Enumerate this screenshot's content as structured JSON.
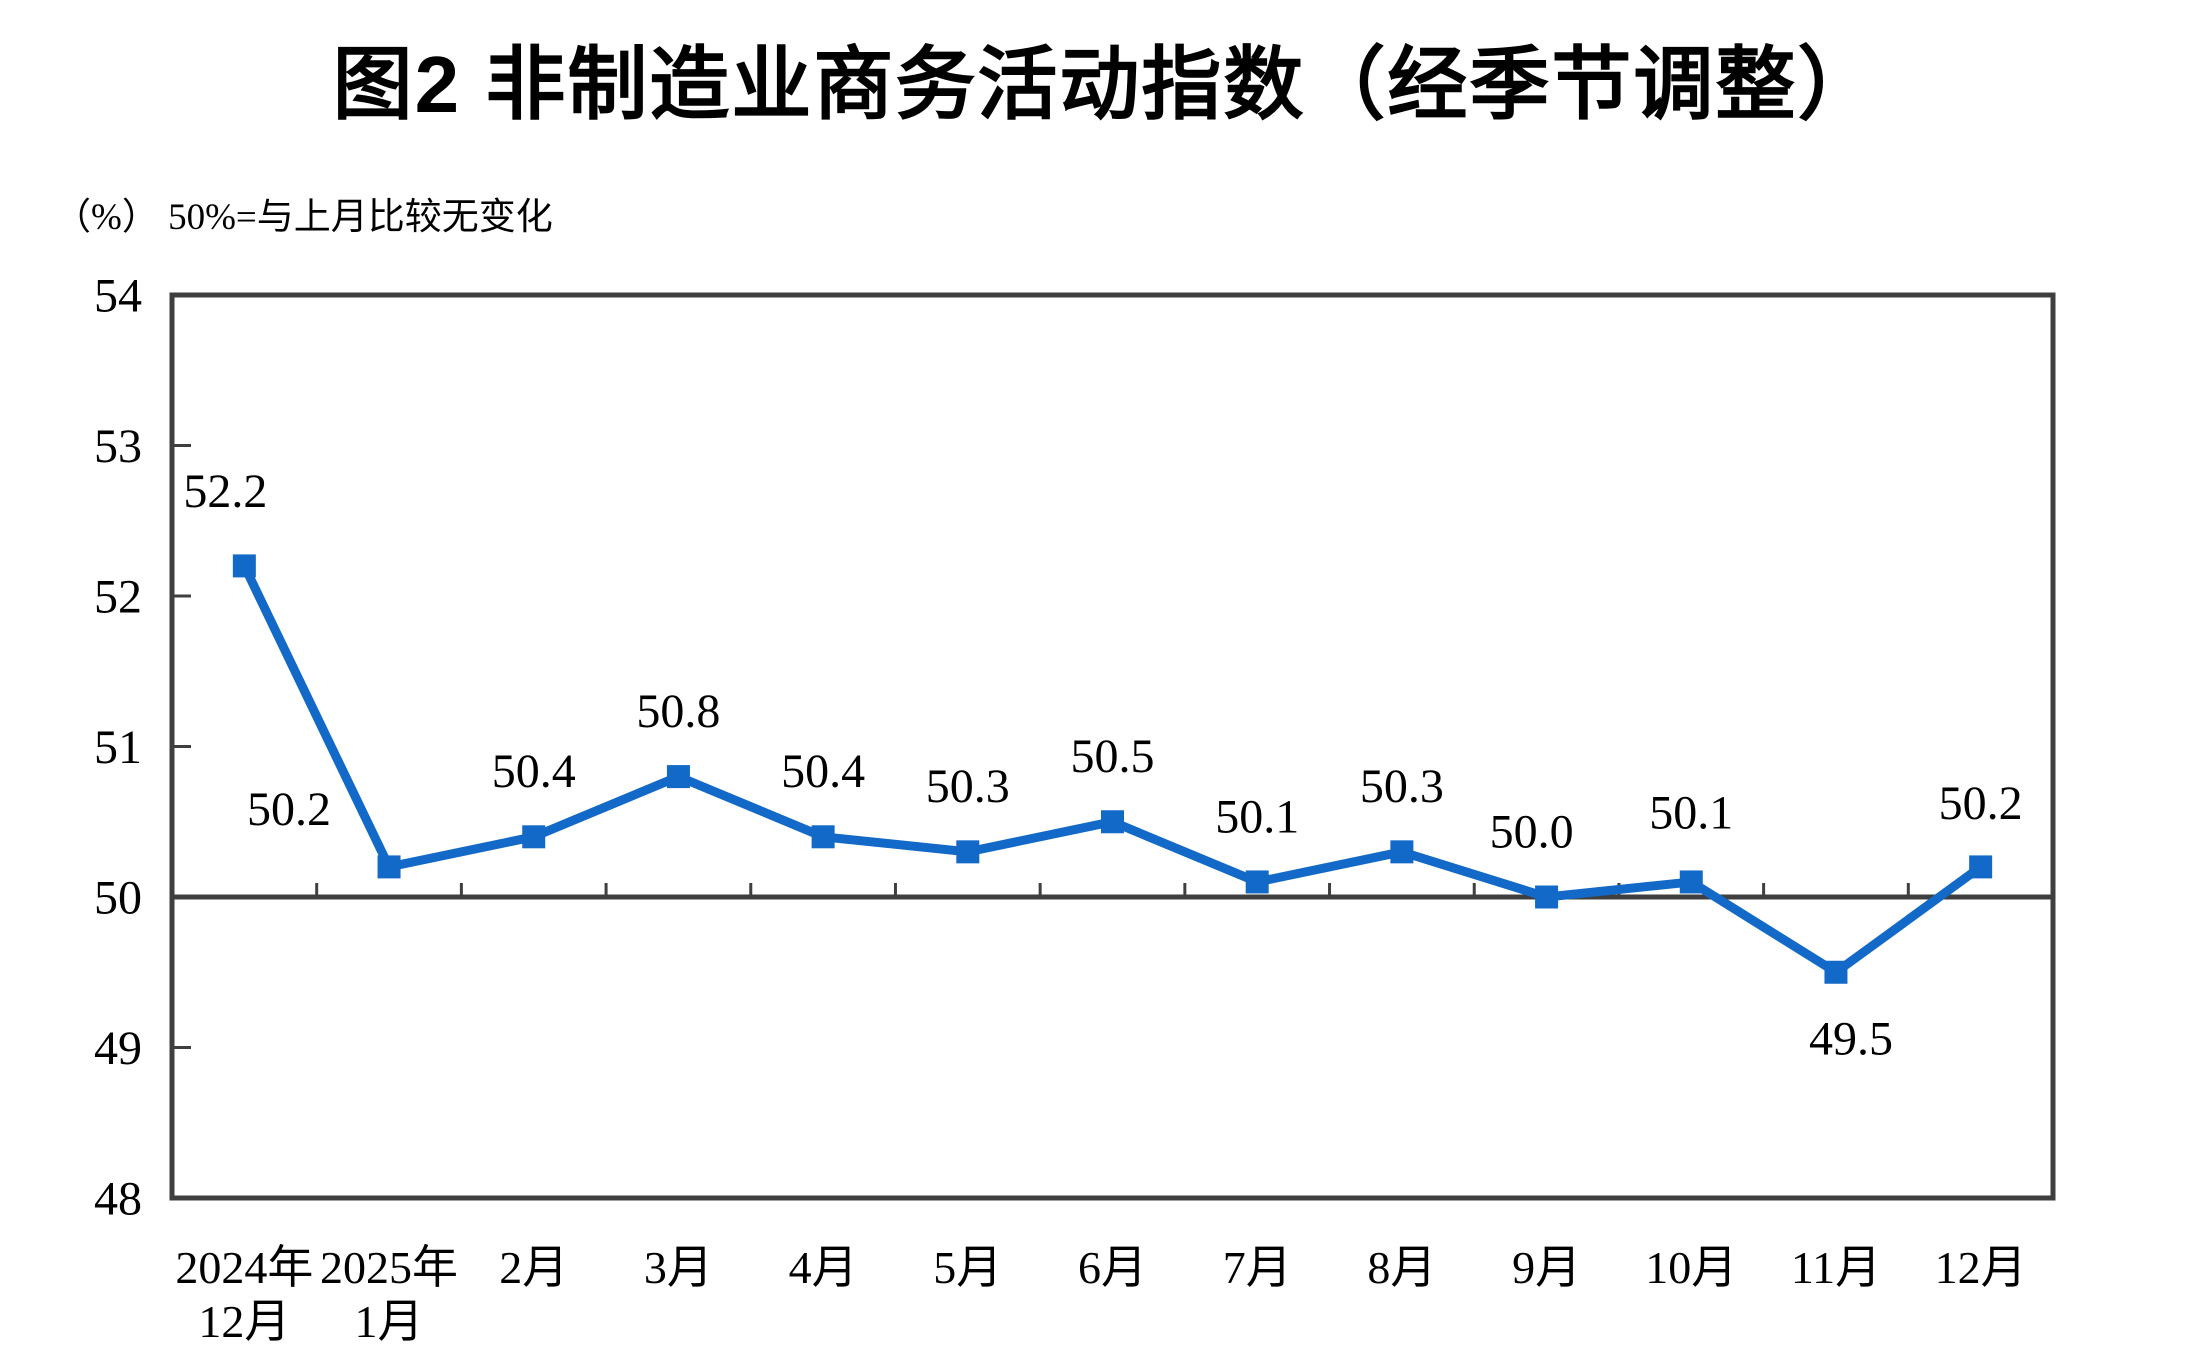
{
  "chart_data": {
    "type": "line",
    "title": "图2 非制造业商务活动指数（经季节调整）",
    "unit_label": "（%） 50%=与上月比较无变化",
    "categories": [
      "2024年12月",
      "2025年1月",
      "2月",
      "3月",
      "4月",
      "5月",
      "6月",
      "7月",
      "8月",
      "9月",
      "10月",
      "11月",
      "12月"
    ],
    "category_lines": [
      [
        "2024年",
        "12月"
      ],
      [
        "2025年",
        "1月"
      ],
      [
        "2月"
      ],
      [
        "3月"
      ],
      [
        "4月"
      ],
      [
        "5月"
      ],
      [
        "6月"
      ],
      [
        "7月"
      ],
      [
        "8月"
      ],
      [
        "9月"
      ],
      [
        "10月"
      ],
      [
        "11月"
      ],
      [
        "12月"
      ]
    ],
    "series": [
      {
        "name": "非制造业商务活动指数（经季节调整）",
        "values": [
          52.2,
          50.2,
          50.4,
          50.8,
          50.4,
          50.3,
          50.5,
          50.1,
          50.3,
          50.0,
          50.1,
          49.5,
          50.2
        ]
      }
    ],
    "data_labels": [
      "52.2",
      "50.2",
      "50.4",
      "50.8",
      "50.4",
      "50.3",
      "50.5",
      "50.1",
      "50.3",
      "50.0",
      "50.1",
      "49.5",
      "50.2"
    ],
    "label_side": [
      "above",
      "above",
      "above",
      "above",
      "above",
      "above",
      "above",
      "above",
      "above",
      "above",
      "above",
      "below",
      "above"
    ],
    "ylim": [
      48,
      54
    ],
    "yticks": [
      54,
      53,
      52,
      51,
      50,
      49,
      48
    ],
    "reference_line_y": 50,
    "grid": false,
    "legend": "none",
    "marker": "square",
    "line_color": "#1269C8",
    "axis_color": "#3f3f3f",
    "text_color": "#000000",
    "background_color": "#ffffff"
  }
}
